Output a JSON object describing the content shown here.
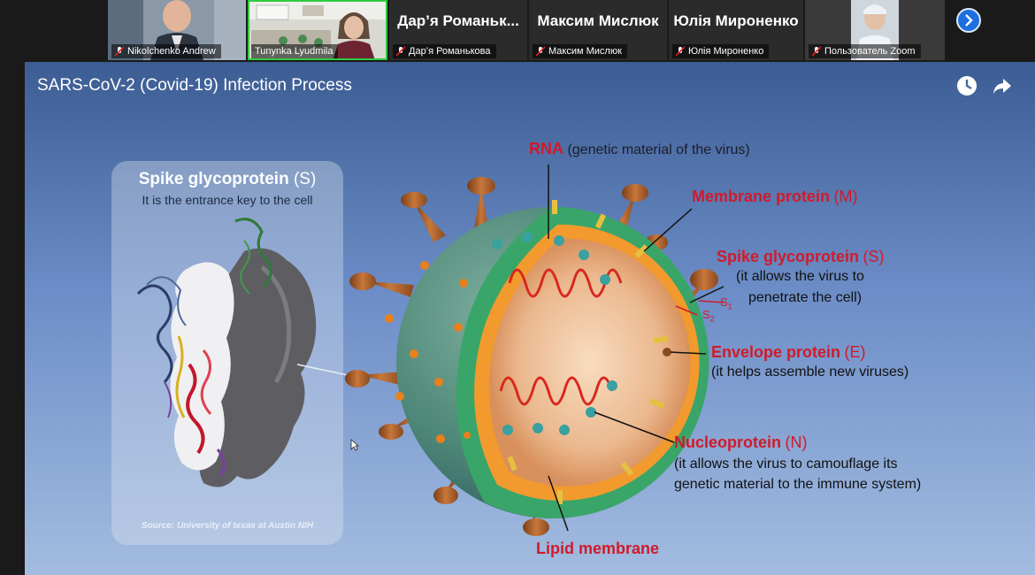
{
  "participants": [
    {
      "name": "Nikolchenko Andrew",
      "has_video": true
    },
    {
      "name": "Tunynka Lyudmila",
      "has_video": true,
      "active_speaker": true
    },
    {
      "display_name": "Дар’я  Романьк...",
      "name": "Дар’я Романькова",
      "has_video": false
    },
    {
      "display_name": "Максим Мислюк",
      "name": "Максим Мислюк",
      "has_video": false
    },
    {
      "display_name": "Юлія Мироненко",
      "name": "Юлія Мироненко",
      "has_video": false
    },
    {
      "name": "Пользователь Zoom",
      "has_video": true
    }
  ],
  "controls": {
    "next_page_icon": "chevron-right-icon"
  },
  "slide": {
    "title": "SARS-CoV-2 (Covid-19) Infection Process",
    "icons": [
      "clock-icon",
      "share-icon"
    ],
    "panel": {
      "title": "Spike glycoprotein",
      "title_code": "(S)",
      "subtitle": "It is the entrance key to the cell",
      "source": "Source: University of texas at Austin NIH"
    },
    "labels": {
      "rna": {
        "name": "RNA",
        "desc": "(genetic material of the virus)"
      },
      "membrane": {
        "name": "Membrane protein",
        "code": "(M)"
      },
      "spike": {
        "name": "Spike glycoprotein",
        "code": "(S)",
        "desc1": "(it allows the virus to",
        "desc2": "penetrate the cell)",
        "s1": "S",
        "s1_sub": "1",
        "s2": "S",
        "s2_sub": "2"
      },
      "envelope": {
        "name": "Envelope protein",
        "code": "(E)",
        "desc": "(it helps assemble new viruses)"
      },
      "nucleo": {
        "name": "Nucleoprotein",
        "code": "(N)",
        "desc1": "(it allows the virus to camouflage its",
        "desc2": "genetic material to the immune system)"
      },
      "lipid": {
        "name": "Lipid membrane"
      }
    },
    "colors": {
      "label_red": "#d11a2a",
      "shell_green": "#3aa569",
      "core_orange": "#f29a2e",
      "spike_brown": "#b0652a"
    }
  }
}
